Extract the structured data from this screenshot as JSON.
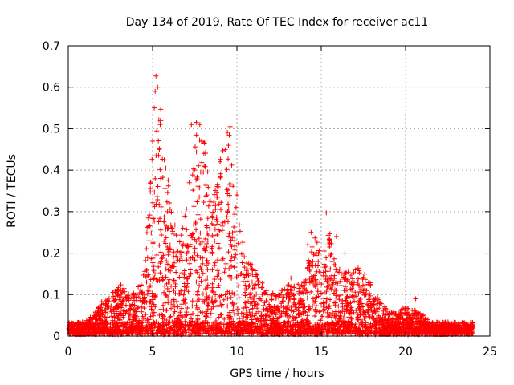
{
  "chart_data": {
    "type": "scatter",
    "title": "Day 134 of 2019, Rate Of TEC Index for receiver ac11",
    "xlabel": "GPS time / hours",
    "ylabel": "ROTI / TECUs",
    "xlim": [
      0,
      25
    ],
    "ylim": [
      0,
      0.7
    ],
    "xticks": [
      "0",
      "5",
      "10",
      "15",
      "20",
      "25"
    ],
    "yticks": [
      "0",
      "0.1",
      "0.2",
      "0.3",
      "0.4",
      "0.5",
      "0.6",
      "0.7"
    ],
    "grid": true,
    "marker": "+",
    "color": "#ff0000",
    "series": [
      {
        "name": "ac11",
        "envelope_x": [
          0,
          0.5,
          1,
          1.5,
          2,
          2.5,
          3,
          3.5,
          4,
          4.5,
          5,
          5.5,
          6,
          6.5,
          7,
          7.5,
          8,
          8.5,
          9,
          9.5,
          10,
          10.5,
          11,
          11.5,
          12,
          12.5,
          13,
          13.5,
          14,
          14.5,
          15,
          15.5,
          16,
          16.5,
          17,
          17.5,
          18,
          18.5,
          19,
          19.5,
          20,
          20.5,
          21,
          21.5,
          22,
          22.5,
          23,
          23.5,
          24
        ],
        "envelope_y": [
          0.03,
          0.03,
          0.03,
          0.05,
          0.08,
          0.09,
          0.13,
          0.1,
          0.1,
          0.17,
          0.45,
          0.55,
          0.35,
          0.22,
          0.3,
          0.5,
          0.5,
          0.3,
          0.42,
          0.5,
          0.3,
          0.2,
          0.17,
          0.13,
          0.1,
          0.1,
          0.12,
          0.12,
          0.13,
          0.25,
          0.2,
          0.25,
          0.18,
          0.15,
          0.17,
          0.15,
          0.12,
          0.08,
          0.06,
          0.05,
          0.07,
          0.06,
          0.05,
          0.03,
          0.03,
          0.03,
          0.03,
          0.03,
          0.03
        ],
        "outliers": [
          [
            5.2,
            0.627
          ],
          [
            5.3,
            0.6
          ],
          [
            5.15,
            0.59
          ],
          [
            5.1,
            0.55
          ],
          [
            5.5,
            0.52
          ],
          [
            5.45,
            0.51
          ],
          [
            5.0,
            0.47
          ],
          [
            5.4,
            0.45
          ],
          [
            7.6,
            0.515
          ],
          [
            7.8,
            0.51
          ],
          [
            7.3,
            0.51
          ],
          [
            7.9,
            0.47
          ],
          [
            9.6,
            0.505
          ],
          [
            9.5,
            0.46
          ],
          [
            9.0,
            0.42
          ],
          [
            8.9,
            0.36
          ],
          [
            10.0,
            0.34
          ],
          [
            15.3,
            0.297
          ],
          [
            14.4,
            0.25
          ],
          [
            15.9,
            0.24
          ],
          [
            14.2,
            0.22
          ],
          [
            16.4,
            0.2
          ],
          [
            13.2,
            0.14
          ],
          [
            20.6,
            0.09
          ]
        ]
      }
    ]
  }
}
